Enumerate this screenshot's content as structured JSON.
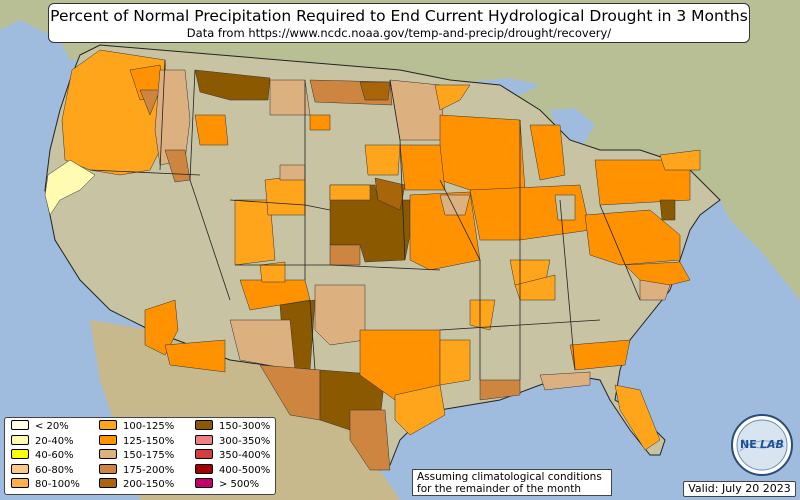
{
  "title": "Percent of Normal Precipitation Required to End Current Hydrological Drought in 3 Months",
  "subtitle": "Data from https://www.ncdc.noaa.gov/temp-and-precip/drought/recovery/",
  "legend": [
    {
      "label": "< 20%",
      "color": "#ffffe6"
    },
    {
      "label": "20-40%",
      "color": "#fffbb0"
    },
    {
      "label": "40-60%",
      "color": "#ffff00"
    },
    {
      "label": "60-80%",
      "color": "#fdca86"
    },
    {
      "label": "80-100%",
      "color": "#ffb04a"
    },
    {
      "label": "100-125%",
      "color": "#ffa51c"
    },
    {
      "label": "125-150%",
      "color": "#ff9200"
    },
    {
      "label": "150-175%",
      "color": "#ddb07f"
    },
    {
      "label": "175-200%",
      "color": "#cd853f"
    },
    {
      "label": "200-150%",
      "color": "#a8650a"
    },
    {
      "label": "150-300%",
      "color": "#8b5a00"
    },
    {
      "label": "300-350%",
      "color": "#f08080"
    },
    {
      "label": "350-400%",
      "color": "#d53e3e"
    },
    {
      "label": "400-500%",
      "color": "#a00000"
    },
    {
      "label": "> 500%",
      "color": "#c2006e"
    }
  ],
  "note_line1": "Assuming climatological conditions",
  "note_line2": "for the remainder of the month",
  "valid": "Valid: July 20 2023",
  "logo_text_1": "NE",
  "logo_text_2": "LAB",
  "colors": {
    "ocean": "#9fbcdf",
    "land": "#c9c4a4",
    "land_east": "#b9c49a"
  }
}
